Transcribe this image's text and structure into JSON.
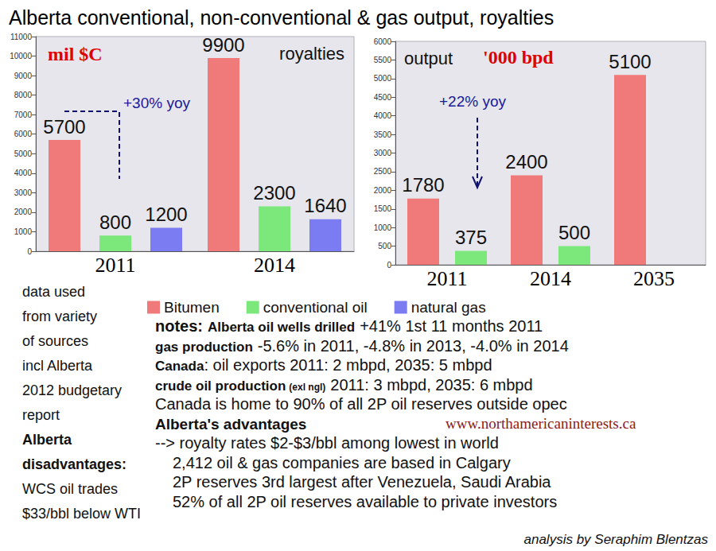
{
  "title": "Alberta conventional, non-conventional & gas output, royalties",
  "chart_data": [
    {
      "type": "bar",
      "title": "royalties",
      "ylabel": "mil $C",
      "categories": [
        "2011",
        "2014"
      ],
      "series": [
        {
          "name": "Bitumen",
          "color": "#f07a7a",
          "values": [
            5700,
            9900
          ]
        },
        {
          "name": "conventional oil",
          "color": "#7ce87c",
          "values": [
            800,
            2300
          ]
        },
        {
          "name": "natural gas",
          "color": "#7b7bf2",
          "values": [
            1200,
            1640
          ]
        }
      ],
      "ylim": [
        0,
        11000
      ],
      "yticks": [
        0,
        1000,
        2000,
        3000,
        4000,
        5000,
        6000,
        7000,
        8000,
        9000,
        10000,
        11000
      ],
      "grid": false,
      "data_labels": true,
      "legend": "bottom",
      "annotations": [
        "+30% yoy"
      ]
    },
    {
      "type": "bar",
      "title": "output",
      "ylabel": "'000 bpd",
      "categories": [
        "2011",
        "2014",
        "2035"
      ],
      "series": [
        {
          "name": "Bitumen",
          "color": "#f07a7a",
          "values": [
            1780,
            2400,
            5100
          ]
        },
        {
          "name": "conventional oil",
          "color": "#7ce87c",
          "values": [
            375,
            500,
            null
          ]
        }
      ],
      "ylim": [
        0,
        6000
      ],
      "yticks": [
        0,
        500,
        1000,
        1500,
        2000,
        2500,
        3000,
        3500,
        4000,
        4500,
        5000,
        5500,
        6000
      ],
      "grid": false,
      "data_labels": true,
      "legend": "bottom",
      "annotations": [
        "+22% yoy"
      ]
    }
  ],
  "source_note": [
    "data used",
    "from variety",
    "of sources",
    "incl Alberta",
    "2012 budgetary",
    "report"
  ],
  "disadvantages_heading": [
    "Alberta",
    "disadvantages:"
  ],
  "disadvantages": [
    "WCS oil trades",
    "$33/bbl below WTI"
  ],
  "notes": {
    "heading": "notes:",
    "items": [
      {
        "label": "Alberta oil wells drilled",
        "text": "+41% 1st 11 months 2011"
      },
      {
        "label": "gas production",
        "text": "-5.6% in 2011, -4.8% in 2013, -4.0% in 2014"
      },
      {
        "label": "Canada",
        "text": ": oil exports 2011: 2 mbpd, 2035: 5 mbpd"
      },
      {
        "label": "crude oil production",
        "qualifier": "(exl ngl)",
        "text": "2011: 3 mbpd, 2035: 6 mbpd"
      },
      {
        "text": "Canada is home to 90% of all 2P oil reserves outside opec"
      }
    ],
    "advantages_heading": "Alberta's advantages",
    "advantages": [
      "--> royalty rates $2-$3/bbl among lowest in world",
      "2,412 oil & gas companies are based in Calgary",
      "2P reserves 3rd largest after Venezuela, Saudi Arabia",
      "52% of all 2P oil reserves available to private investors"
    ]
  },
  "url": "www.northamericaninterests.ca",
  "credit": "analysis by Seraphim Blentzas"
}
